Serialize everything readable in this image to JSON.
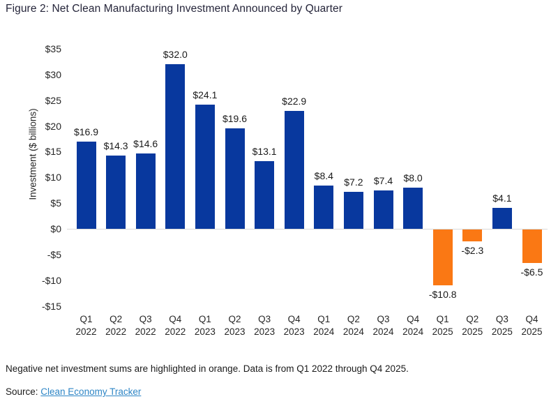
{
  "figure": {
    "title": "Figure 2: Net Clean Manufacturing Investment Announced by Quarter",
    "footnote": "Negative net investment sums are highlighted in orange. Data is from Q1 2022 through Q4 2025.",
    "source_prefix": "Source: ",
    "source_link": "Clean Economy Tracker"
  },
  "chart_data": {
    "type": "bar",
    "title": "Figure 2: Net Clean Manufacturing Investment Announced by Quarter",
    "xlabel": "",
    "ylabel": "Investment ($ billions)",
    "ylim": [
      -15,
      35
    ],
    "grid": false,
    "legend": "none",
    "categories": [
      "Q1 2022",
      "Q2 2022",
      "Q3 2022",
      "Q4 2022",
      "Q1 2023",
      "Q2 2023",
      "Q3 2023",
      "Q4 2023",
      "Q1 2024",
      "Q2 2024",
      "Q3 2024",
      "Q4 2024",
      "Q1 2025",
      "Q2 2025",
      "Q3 2025",
      "Q4 2025"
    ],
    "values": [
      16.9,
      14.3,
      14.6,
      32.0,
      24.1,
      19.6,
      13.1,
      22.9,
      8.4,
      7.2,
      7.4,
      8.0,
      -10.8,
      -2.3,
      4.1,
      -6.5
    ],
    "value_labels": [
      "$16.9",
      "$14.3",
      "$14.6",
      "$32.0",
      "$24.1",
      "$19.6",
      "$13.1",
      "$22.9",
      "$8.4",
      "$7.2",
      "$7.4",
      "$8.0",
      "-$10.8",
      "-$2.3",
      "$4.1",
      "-$6.5"
    ],
    "y_ticks": [
      {
        "v": 35,
        "label": "$35"
      },
      {
        "v": 30,
        "label": "$30"
      },
      {
        "v": 25,
        "label": "$25"
      },
      {
        "v": 20,
        "label": "$20"
      },
      {
        "v": 15,
        "label": "$15"
      },
      {
        "v": 10,
        "label": "$10"
      },
      {
        "v": 5,
        "label": "$5"
      },
      {
        "v": 0,
        "label": "$0"
      },
      {
        "v": -5,
        "label": "-$5"
      },
      {
        "v": -10,
        "label": "-$10"
      },
      {
        "v": -15,
        "label": "-$15"
      }
    ],
    "colors": {
      "positive_bar": "#08389e",
      "negative_bar": "#fa7814",
      "baseline": "#d9d9d9",
      "link": "#2e86c6"
    }
  }
}
